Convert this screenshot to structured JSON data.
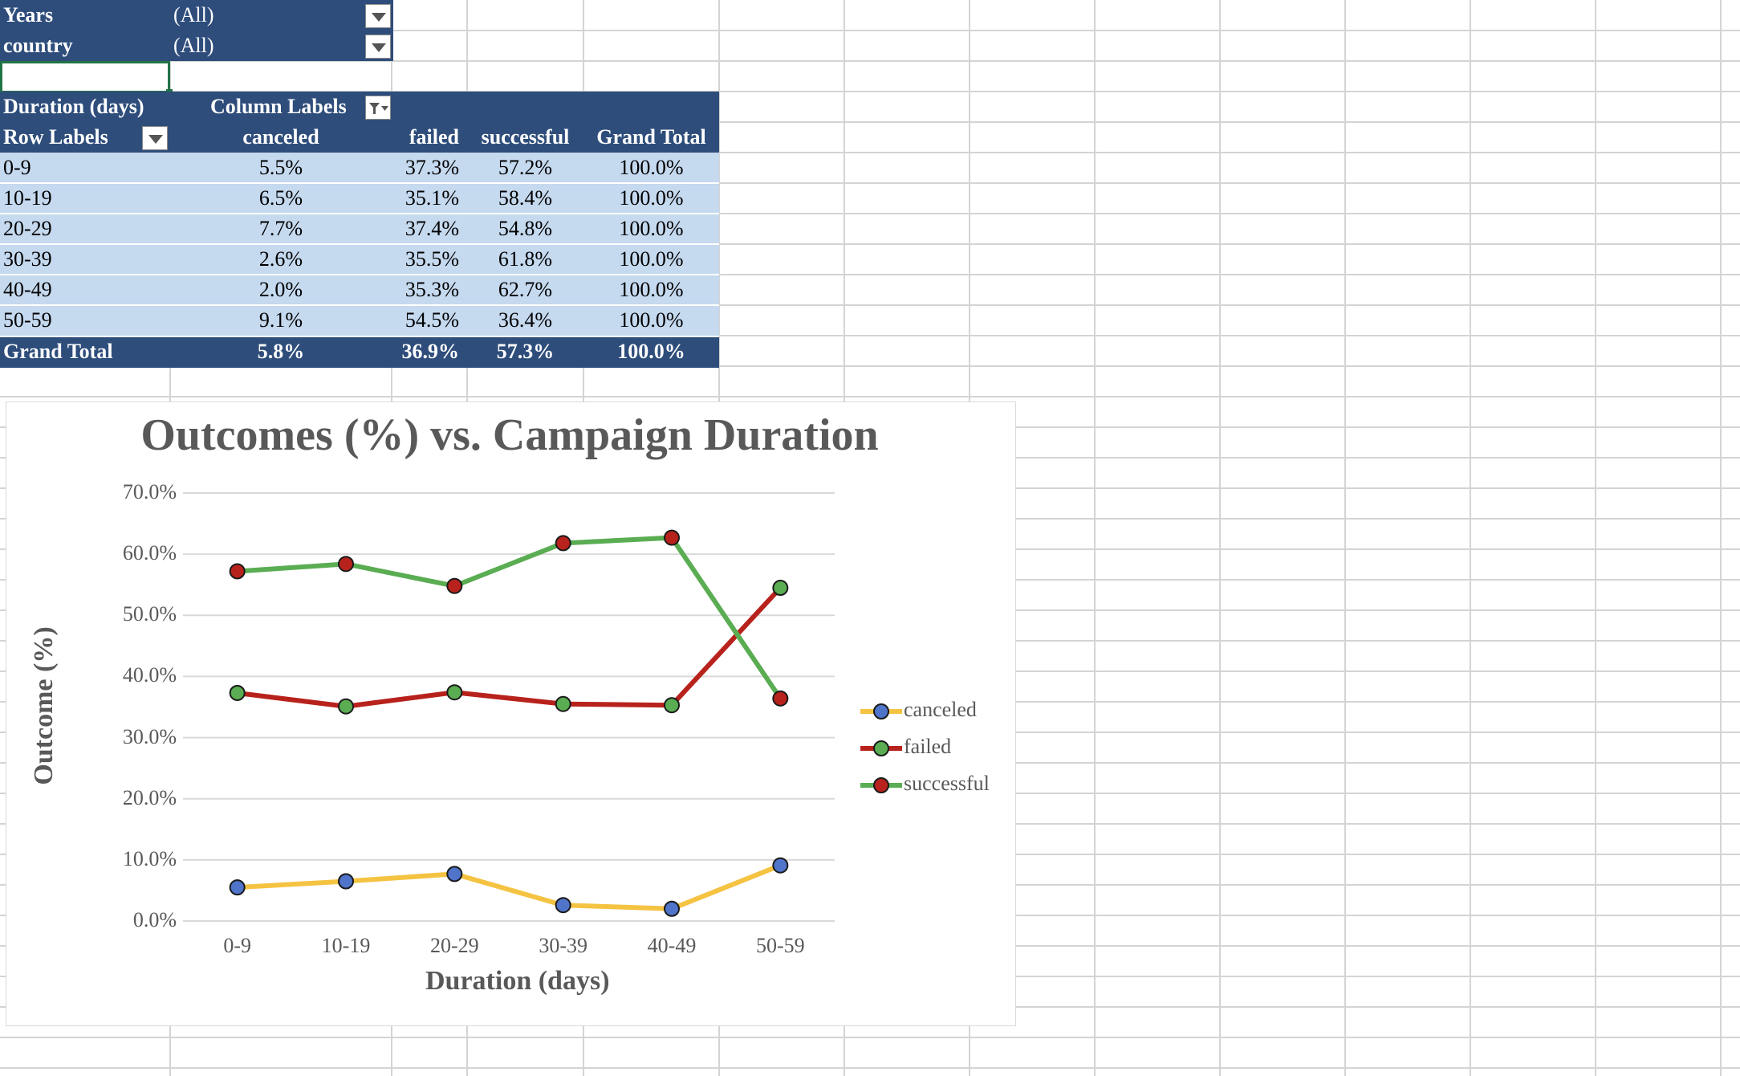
{
  "filters": [
    {
      "label": "Years",
      "value": "(All)"
    },
    {
      "label": "country",
      "value": "(All)"
    }
  ],
  "pivot": {
    "value_header": "Duration (days)",
    "column_labels": "Column Labels",
    "row_labels": "Row Labels",
    "columns": [
      "canceled",
      "failed",
      "successful",
      "Grand Total"
    ],
    "rows": [
      {
        "label": "0-9",
        "values": [
          "5.5%",
          "37.3%",
          "57.2%",
          "100.0%"
        ]
      },
      {
        "label": "10-19",
        "values": [
          "6.5%",
          "35.1%",
          "58.4%",
          "100.0%"
        ]
      },
      {
        "label": "20-29",
        "values": [
          "7.7%",
          "37.4%",
          "54.8%",
          "100.0%"
        ]
      },
      {
        "label": "30-39",
        "values": [
          "2.6%",
          "35.5%",
          "61.8%",
          "100.0%"
        ]
      },
      {
        "label": "40-49",
        "values": [
          "2.0%",
          "35.3%",
          "62.7%",
          "100.0%"
        ]
      },
      {
        "label": "50-59",
        "values": [
          "9.1%",
          "54.5%",
          "36.4%",
          "100.0%"
        ]
      }
    ],
    "grand_total": {
      "label": "Grand Total",
      "values": [
        "5.8%",
        "36.9%",
        "57.3%",
        "100.0%"
      ]
    }
  },
  "colors": {
    "header_navy": "#2e4d7b",
    "row_blue": "#c5d9ef",
    "line_yellow": "#f5c342",
    "line_red": "#b8221c",
    "line_green": "#5aad52",
    "marker_blue": "#4f74c9"
  },
  "icons": [
    "dropdown-arrow-icon",
    "filter-dropdown-icon"
  ],
  "chart_data": {
    "type": "line",
    "title": "Outcomes (%) vs. Campaign Duration",
    "xlabel": "Duration (days)",
    "ylabel": "Outcome (%)",
    "categories": [
      "0-9",
      "10-19",
      "20-29",
      "30-39",
      "40-49",
      "50-59"
    ],
    "ylim": [
      0,
      70
    ],
    "yticks": [
      "0.0%",
      "10.0%",
      "20.0%",
      "30.0%",
      "40.0%",
      "50.0%",
      "60.0%",
      "70.0%"
    ],
    "grid": true,
    "legend_position": "right",
    "series": [
      {
        "name": "canceled",
        "values": [
          5.5,
          6.5,
          7.7,
          2.6,
          2.0,
          9.1
        ],
        "line_color": "#f5c342",
        "marker_color": "#4f74c9"
      },
      {
        "name": "failed",
        "values": [
          37.3,
          35.1,
          37.4,
          35.5,
          35.3,
          54.5
        ],
        "line_color": "#b8221c",
        "marker_color": "#5aad52"
      },
      {
        "name": "successful",
        "values": [
          57.2,
          58.4,
          54.8,
          61.8,
          62.7,
          36.4
        ],
        "line_color": "#5aad52",
        "marker_color": "#b8221c"
      }
    ]
  }
}
